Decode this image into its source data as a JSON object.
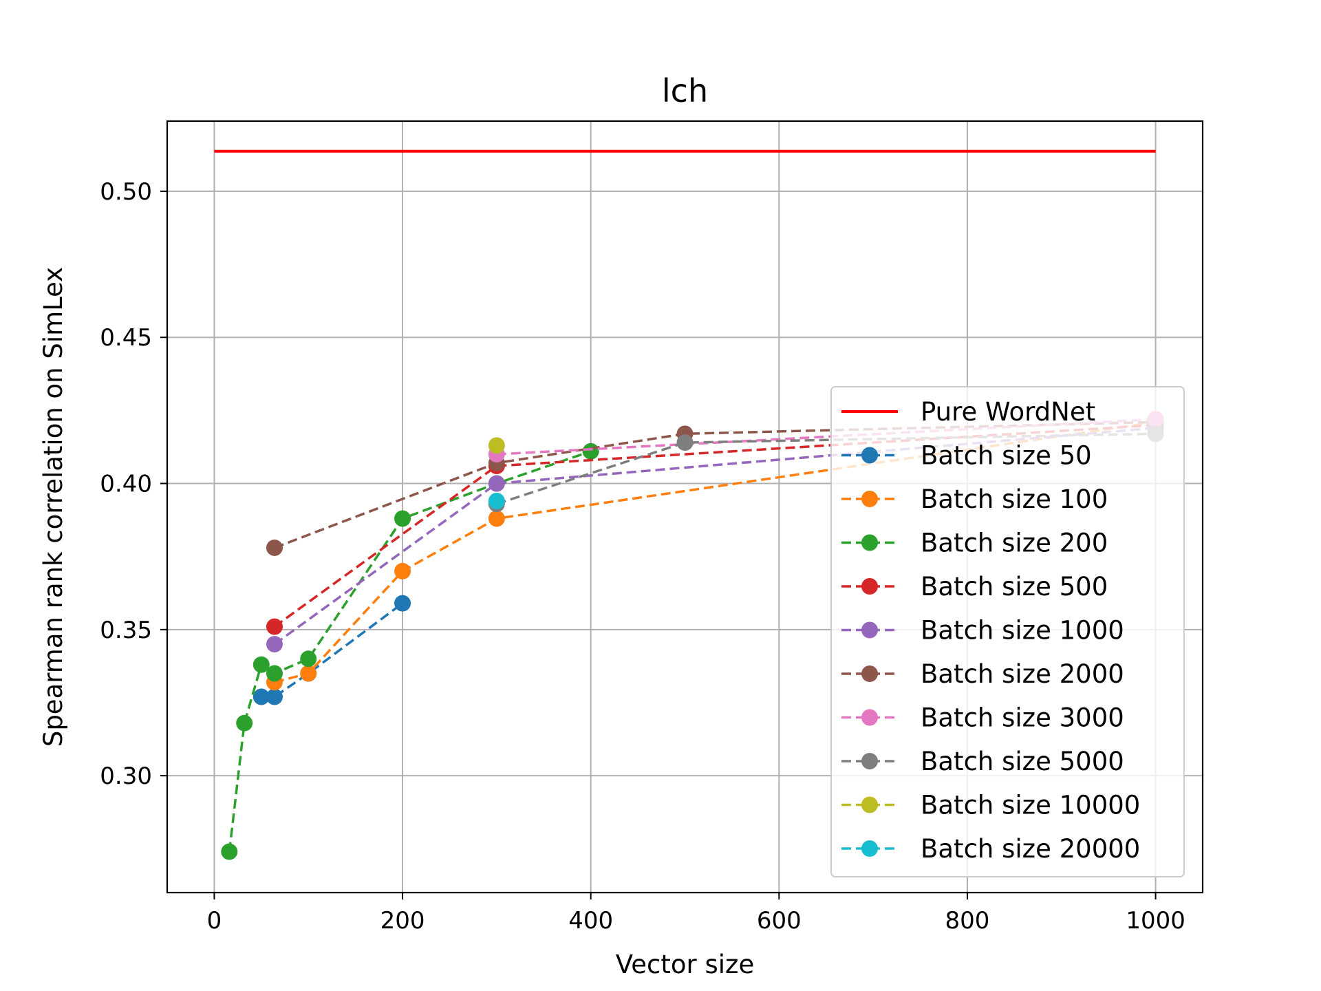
{
  "chart_data": {
    "type": "line",
    "title": "lch",
    "xlabel": "Vector size",
    "ylabel": "Spearman rank correlation on SimLex",
    "xlim": [
      -50,
      1050
    ],
    "ylim": [
      0.26,
      0.524
    ],
    "xticks": [
      0,
      200,
      400,
      600,
      800,
      1000
    ],
    "yticks": [
      0.3,
      0.35,
      0.4,
      0.45,
      0.5
    ],
    "xtick_labels": [
      "0",
      "200",
      "400",
      "600",
      "800",
      "1000"
    ],
    "ytick_labels": [
      "0.30",
      "0.35",
      "0.40",
      "0.45",
      "0.50"
    ],
    "grid": true,
    "legend_position": "lower-right",
    "reference_line": {
      "name": "Pure WordNet",
      "y": 0.5137,
      "x": [
        0,
        1000
      ],
      "color": "#ff0000"
    },
    "series": [
      {
        "name": "Batch size 50",
        "color": "#1f77b4",
        "x": [
          50,
          64,
          100,
          200
        ],
        "y": [
          0.327,
          0.327,
          0.335,
          0.359
        ]
      },
      {
        "name": "Batch size 100",
        "color": "#ff7f0e",
        "x": [
          64,
          100,
          200,
          300,
          1000
        ],
        "y": [
          0.332,
          0.335,
          0.37,
          0.388,
          0.421
        ]
      },
      {
        "name": "Batch size 200",
        "color": "#2ca02c",
        "x": [
          16,
          32,
          50,
          64,
          100,
          200,
          300,
          400
        ],
        "y": [
          0.274,
          0.318,
          0.338,
          0.335,
          0.34,
          0.388,
          0.4,
          0.411
        ]
      },
      {
        "name": "Batch size 500",
        "color": "#d62728",
        "x": [
          64,
          300,
          1000
        ],
        "y": [
          0.351,
          0.406,
          0.42
        ]
      },
      {
        "name": "Batch size 1000",
        "color": "#9467bd",
        "x": [
          64,
          300,
          1000
        ],
        "y": [
          0.345,
          0.4,
          0.419
        ]
      },
      {
        "name": "Batch size 2000",
        "color": "#8c564b",
        "x": [
          64,
          300,
          500,
          1000
        ],
        "y": [
          0.378,
          0.407,
          0.417,
          0.421
        ]
      },
      {
        "name": "Batch size 3000",
        "color": "#e377c2",
        "x": [
          300,
          1000
        ],
        "y": [
          0.41,
          0.422
        ]
      },
      {
        "name": "Batch size 5000",
        "color": "#7f7f7f",
        "x": [
          300,
          500,
          1000
        ],
        "y": [
          0.393,
          0.414,
          0.417
        ]
      },
      {
        "name": "Batch size 10000",
        "color": "#bcbd22",
        "x": [
          300
        ],
        "y": [
          0.413
        ]
      },
      {
        "name": "Batch size 20000",
        "color": "#17becf",
        "x": [
          300
        ],
        "y": [
          0.394
        ]
      }
    ]
  }
}
